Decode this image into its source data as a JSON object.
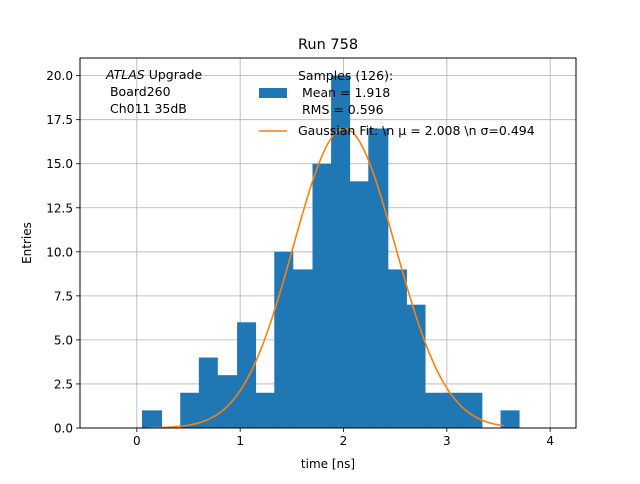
{
  "chart_data": {
    "type": "bar",
    "title": "Run 758",
    "xlabel": "time [ns]",
    "ylabel": "Entries",
    "xlim": [
      -0.55,
      4.25
    ],
    "ylim": [
      0,
      21
    ],
    "grid": true,
    "x_ticks": [
      0,
      1,
      2,
      3,
      4
    ],
    "y_ticks": [
      0.0,
      2.5,
      5.0,
      7.5,
      10.0,
      12.5,
      15.0,
      17.5,
      20.0
    ],
    "x_tick_labels": [
      "0",
      "1",
      "2",
      "3",
      "4"
    ],
    "y_tick_labels": [
      "0.0",
      "2.5",
      "5.0",
      "7.5",
      "10.0",
      "12.5",
      "15.0",
      "17.5",
      "20.0"
    ],
    "annotation_lines": [
      "ATLAS Upgrade",
      " Board260",
      " Ch011 35dB"
    ],
    "histogram": {
      "name": "Samples (126):",
      "color": "#1f77b4",
      "bins": [
        [
          0.05,
          0.24,
          1
        ],
        [
          0.24,
          0.42,
          0
        ],
        [
          0.42,
          0.6,
          2
        ],
        [
          0.6,
          0.78,
          4
        ],
        [
          0.78,
          0.97,
          3
        ],
        [
          0.97,
          1.15,
          6
        ],
        [
          1.15,
          1.33,
          2
        ],
        [
          1.33,
          1.51,
          10
        ],
        [
          1.51,
          1.7,
          9
        ],
        [
          1.7,
          1.88,
          15
        ],
        [
          1.88,
          2.06,
          20
        ],
        [
          2.06,
          2.24,
          14
        ],
        [
          2.24,
          2.43,
          17
        ],
        [
          2.43,
          2.61,
          9
        ],
        [
          2.61,
          2.79,
          7
        ],
        [
          2.79,
          2.97,
          2
        ],
        [
          2.97,
          3.16,
          2
        ],
        [
          3.16,
          3.34,
          2
        ],
        [
          3.34,
          3.52,
          0
        ],
        [
          3.52,
          3.7,
          1
        ]
      ]
    },
    "fit": {
      "color": "#ff7f0e",
      "mu": 2.008,
      "sigma": 0.494,
      "amplitude": 17.0,
      "x_range": [
        0.1,
        3.55
      ]
    },
    "legend": {
      "placement": "top-right",
      "entries": [
        {
          "label_lines": [
            "Samples (126):",
            " Mean = 1.918",
            " RMS = 0.596"
          ],
          "style": "patch",
          "color": "#1f77b4"
        },
        {
          "label_lines": [
            "Gaussian Fit: \\n μ = 2.008 \\n σ=0.494"
          ],
          "style": "line",
          "color": "#ff7f0e"
        }
      ]
    }
  }
}
